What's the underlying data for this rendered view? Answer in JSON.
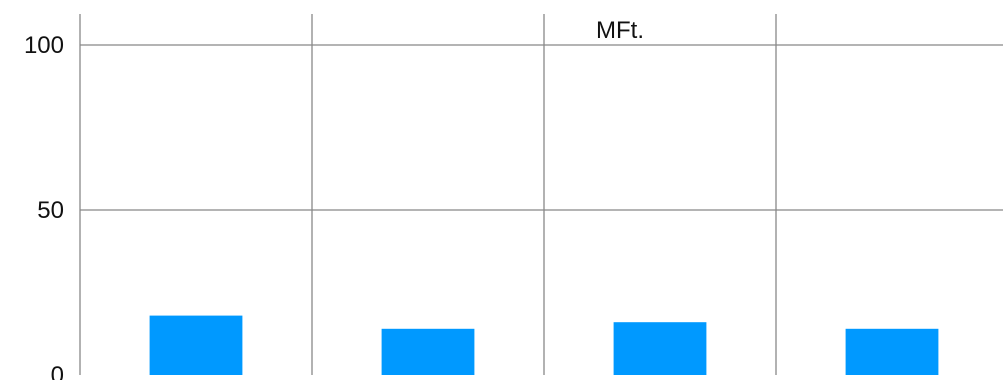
{
  "chart_data": {
    "type": "bar",
    "title": "MFt.",
    "categories": [
      "",
      "",
      "",
      ""
    ],
    "series": [
      {
        "values": [
          18,
          14,
          16,
          14
        ]
      }
    ],
    "yticks": [
      "0",
      "50",
      "100"
    ],
    "ylim": [
      0,
      100
    ],
    "grid": "on",
    "legend": "none",
    "colors": {
      "bar": "#0099ff",
      "grid": "#888888",
      "text": "#111111"
    }
  }
}
